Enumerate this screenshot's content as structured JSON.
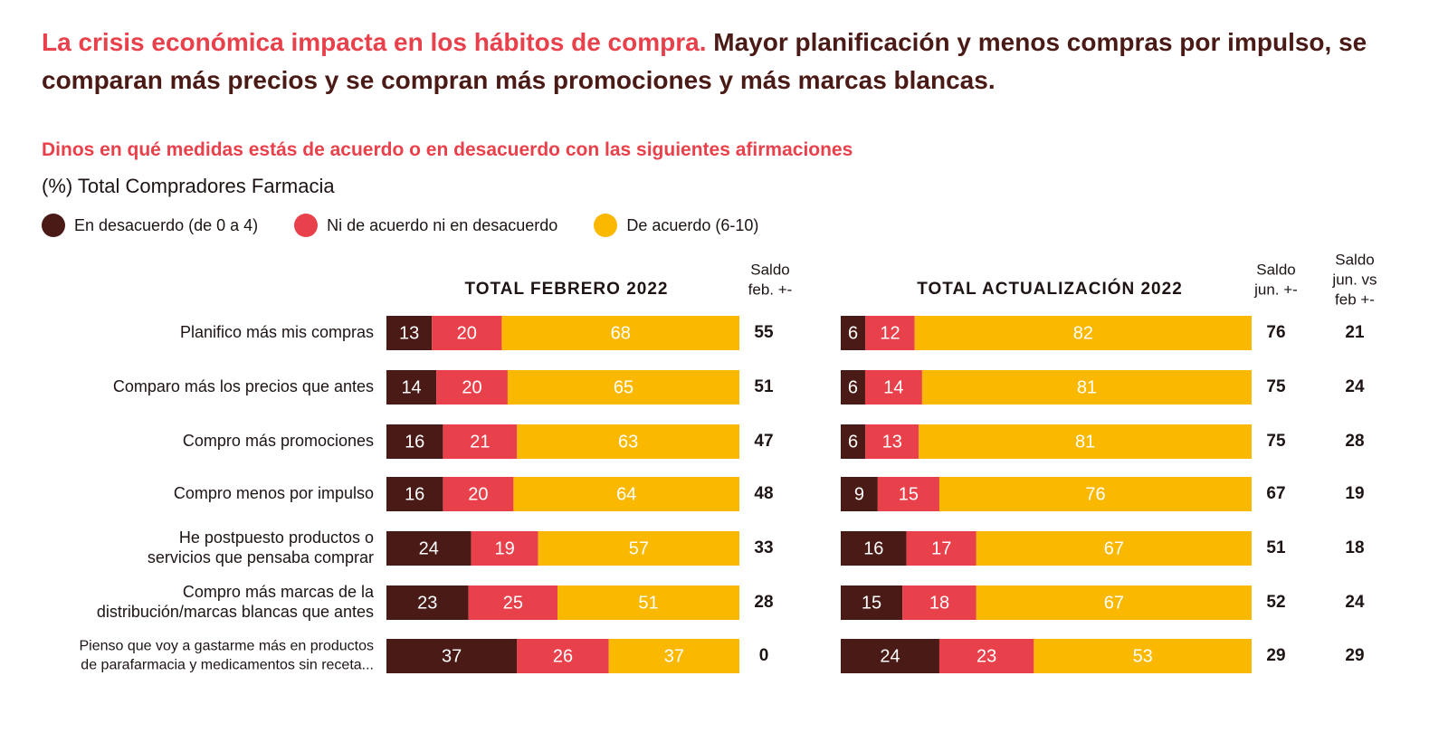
{
  "headline": {
    "part1": "La crisis económica impacta en los hábitos de compra.",
    "part2": "Mayor planificación y menos compras por impulso, se comparan más precios y se compran más promociones y más marcas blancas."
  },
  "question": "Dinos en qué medidas estás de acuerdo o en desacuerdo con las siguientes afirmaciones",
  "base": "(%) Total Compradores Farmacia",
  "colors": {
    "desacuerdo": "#4a1a16",
    "neutral": "#e8414b",
    "acuerdo": "#fbb800",
    "headline_dark": "#4a1a16",
    "accent": "#e8414b"
  },
  "chart_data": {
    "type": "bar",
    "orientation": "horizontal",
    "stacked": true,
    "legend_position": "top-left",
    "series_names": [
      "En desacuerdo (de 0 a 4)",
      "Ni de acuerdo ni en desacuerdo",
      "De acuerdo (6-10)"
    ],
    "categories": [
      [
        "Planifico más mis compras"
      ],
      [
        "Comparo más los precios que antes"
      ],
      [
        "Compro más promociones"
      ],
      [
        "Compro menos por impulso"
      ],
      [
        "He postpuesto productos o",
        "servicios que pensaba comprar"
      ],
      [
        "Compro más marcas de la",
        "distribución/marcas blancas que antes"
      ],
      [
        "Pienso que voy a gastarme más en productos",
        "de parafarmacia y medicamentos sin receta..."
      ]
    ],
    "panels": [
      {
        "title": "TOTAL FEBRERO 2022",
        "saldo_header": [
          "Saldo",
          "feb. +-"
        ],
        "rows": [
          [
            13,
            20,
            68
          ],
          [
            14,
            20,
            65
          ],
          [
            16,
            21,
            63
          ],
          [
            16,
            20,
            64
          ],
          [
            24,
            19,
            57
          ],
          [
            23,
            25,
            51
          ],
          [
            37,
            26,
            37
          ]
        ],
        "saldo": [
          55,
          51,
          47,
          48,
          33,
          28,
          0
        ]
      },
      {
        "title": "TOTAL ACTUALIZACIÓN 2022",
        "saldo_header": [
          "Saldo",
          "jun. +-"
        ],
        "rows": [
          [
            6,
            12,
            82
          ],
          [
            6,
            14,
            81
          ],
          [
            6,
            13,
            81
          ],
          [
            9,
            15,
            76
          ],
          [
            16,
            17,
            67
          ],
          [
            15,
            18,
            67
          ],
          [
            24,
            23,
            53
          ]
        ],
        "saldo": [
          76,
          75,
          75,
          67,
          51,
          52,
          29
        ]
      }
    ],
    "diff_header": [
      "Saldo",
      "jun. vs",
      "feb +-"
    ],
    "diff": [
      21,
      24,
      28,
      19,
      18,
      24,
      29
    ]
  }
}
